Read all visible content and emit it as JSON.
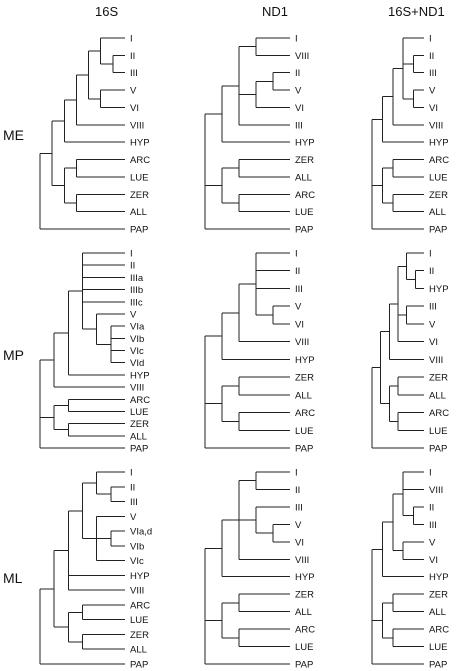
{
  "columns": [
    "16S",
    "ND1",
    "16S+ND1"
  ],
  "rows": [
    "ME",
    "MP",
    "ML"
  ],
  "trees": [
    [
      {
        "name": "ME-16S",
        "tree": [
          [
            [
              [
                [
                  [
                    [
                      "I"
                    ],
                    [
                      [
                        "II"
                      ],
                      [
                        "III"
                      ]
                    ]
                  ],
                  [
                    [
                      "V"
                    ],
                    [
                      "VI"
                    ]
                  ]
                ],
                [
                  "VIII"
                ]
              ],
              [
                "HYP"
              ]
            ],
            [
              [
                [
                  "ARC"
                ],
                [
                  "LUE"
                ]
              ],
              [
                [
                  "ZER"
                ],
                [
                  "ALL"
                ]
              ]
            ]
          ],
          [
            "PAP"
          ]
        ]
      },
      {
        "name": "ME-ND1",
        "tree": [
          [
            [
              [
                [
                  "I"
                ],
                [
                  "VIII"
                ]
              ],
              [
                [
                  [
                    "II"
                  ],
                  [
                    "V"
                  ]
                ],
                [
                  "VI"
                ]
              ],
              [
                "III"
              ]
            ],
            [
              "HYP"
            ]
          ],
          [
            [
              [
                "ZER"
              ],
              [
                "ALL"
              ]
            ],
            [
              [
                "ARC"
              ],
              [
                "LUE"
              ]
            ]
          ],
          [
            "PAP"
          ]
        ]
      },
      {
        "name": "ME-16S+ND1",
        "tree": [
          [
            [
              [
                [
                  "I"
                ],
                [
                  [
                    "II"
                  ],
                  [
                    "III"
                  ]
                ],
                [
                  [
                    "V"
                  ],
                  [
                    "VI"
                  ]
                ]
              ],
              [
                "VIII"
              ]
            ],
            [
              "HYP"
            ]
          ],
          [
            [
              [
                "ARC"
              ],
              [
                "LUE"
              ]
            ],
            [
              [
                "ZER"
              ],
              [
                "ALL"
              ]
            ]
          ],
          [
            "PAP"
          ]
        ]
      }
    ],
    [
      {
        "name": "MP-16S",
        "tree": [
          [
            [
              [
                [
                  "I"
                ],
                [
                  "II"
                ],
                [
                  "IIIa"
                ],
                [
                  "IIIb"
                ],
                [
                  "IIIc"
                ],
                [
                  [
                    "V"
                  ],
                  [
                    [
                      "VIa"
                    ],
                    [
                      "VIb"
                    ],
                    [
                      "VIc"
                    ],
                    [
                      "VId"
                    ]
                  ]
                ]
              ],
              [
                "HYP"
              ]
            ],
            [
              "VIII"
            ]
          ],
          [
            [
              [
                "ARC"
              ],
              [
                "LUE"
              ]
            ],
            [
              [
                "ZER"
              ],
              [
                "ALL"
              ]
            ]
          ],
          [
            "PAP"
          ]
        ]
      },
      {
        "name": "MP-ND1",
        "tree": [
          [
            [
              [
                [
                  "I"
                ],
                [
                  "II"
                ],
                [
                  "III"
                ],
                [
                  [
                    "V"
                  ],
                  [
                    "VI"
                  ]
                ]
              ],
              [
                "VIII"
              ]
            ],
            [
              "HYP"
            ]
          ],
          [
            [
              [
                "ZER"
              ],
              [
                "ALL"
              ]
            ],
            [
              [
                "ARC"
              ],
              [
                "LUE"
              ]
            ]
          ],
          [
            "PAP"
          ]
        ]
      },
      {
        "name": "MP-16S+ND1",
        "tree": [
          [
            [
              [
                [
                  [
                    "I"
                  ],
                  [
                    [
                      "II"
                    ],
                    [
                      "HYP"
                    ]
                  ]
                ],
                [
                  [
                    "III"
                  ],
                  [
                    "V"
                  ]
                ],
                [
                  "VI"
                ]
              ],
              [
                "VIII"
              ]
            ],
            [
              [
                [
                  "ZER"
                ],
                [
                  "ALL"
                ]
              ],
              [
                [
                  "ARC"
                ],
                [
                  "LUE"
                ]
              ]
            ]
          ],
          [
            "PAP"
          ]
        ]
      }
    ],
    [
      {
        "name": "ML-16S",
        "tree": [
          [
            [
              [
                [
                  [
                    "I"
                  ],
                  [
                    [
                      "II"
                    ],
                    [
                      "III"
                    ]
                  ]
                ],
                [
                  [
                    "V"
                  ],
                  [
                    [
                      "VIa,d"
                    ],
                    [
                      "VIb"
                    ]
                  ],
                  [
                    "VIc"
                  ]
                ]
              ],
              [
                "HYP"
              ],
              [
                "VIII"
              ]
            ],
            [
              [
                [
                  "ARC"
                ],
                [
                  "LUE"
                ]
              ],
              [
                [
                  "ZER"
                ],
                [
                  "ALL"
                ]
              ]
            ]
          ],
          [
            "PAP"
          ]
        ]
      },
      {
        "name": "ML-ND1",
        "tree": [
          [
            [
              [
                [
                  "I"
                ],
                [
                  "II"
                ]
              ],
              [
                [
                  "III"
                ],
                [
                  [
                    "V"
                  ],
                  [
                    "VI"
                  ]
                ]
              ],
              [
                "VIII"
              ]
            ],
            [
              "HYP"
            ]
          ],
          [
            [
              [
                "ZER"
              ],
              [
                "ALL"
              ]
            ],
            [
              [
                "ARC"
              ],
              [
                "LUE"
              ]
            ]
          ],
          [
            "PAP"
          ]
        ]
      },
      {
        "name": "ML-16S+ND1",
        "tree": [
          [
            [
              [
                [
                  "I"
                ],
                [
                  "VIII"
                ],
                [
                  [
                    "II"
                  ],
                  [
                    "III"
                  ]
                ]
              ],
              [
                [
                  "V"
                ],
                [
                  "VI"
                ]
              ]
            ],
            [
              "HYP"
            ]
          ],
          [
            [
              [
                "ZER"
              ],
              [
                "ALL"
              ]
            ],
            [
              [
                "ARC"
              ],
              [
                "LUE"
              ]
            ]
          ],
          [
            "PAP"
          ]
        ]
      }
    ]
  ]
}
